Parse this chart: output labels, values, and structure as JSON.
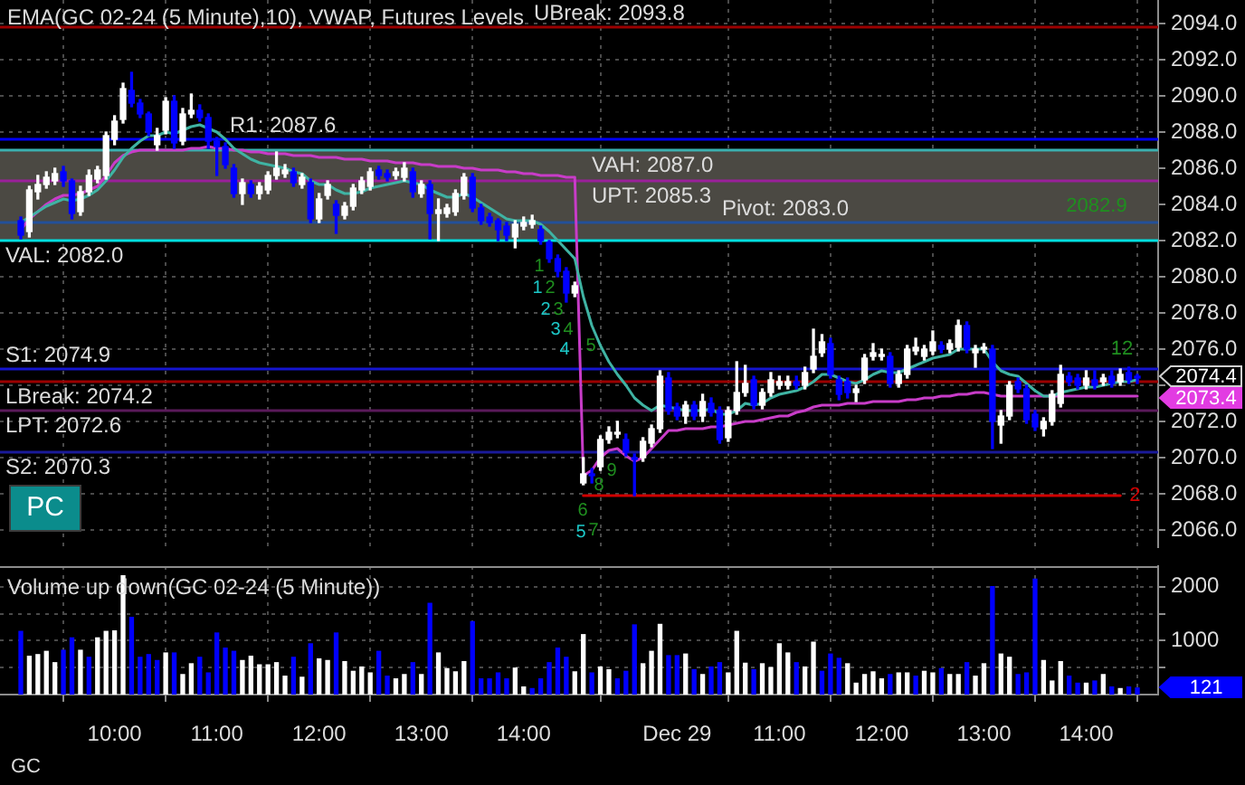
{
  "chart_data": [
    {
      "type": "candlestick",
      "title": "EMA(GC 02-24 (5 Minute),10), VWAP, Futures Levels",
      "categories": [
        null,
        null,
        null,
        null,
        null,
        null,
        null,
        null,
        null,
        null,
        null,
        null,
        null,
        null,
        null,
        null,
        null,
        null,
        null,
        null,
        null,
        null,
        null,
        null,
        null,
        null,
        null,
        null,
        null,
        null,
        null,
        null,
        null,
        null,
        null,
        null,
        null,
        null,
        null,
        null,
        null,
        null,
        null,
        null,
        null,
        null,
        null,
        null,
        null,
        null,
        null,
        null,
        null,
        null,
        null,
        null,
        null,
        null,
        null,
        null,
        null,
        null,
        null,
        null,
        null,
        null,
        null,
        null,
        null,
        null,
        null,
        null,
        null,
        null,
        null,
        null,
        null,
        null,
        null,
        null,
        null,
        null,
        null,
        null,
        null,
        null,
        null,
        null,
        null,
        null,
        null,
        null,
        null,
        null,
        null,
        null,
        null,
        null,
        null,
        null,
        null,
        null,
        null,
        null,
        null,
        null,
        null,
        null,
        null,
        null,
        null,
        null,
        null,
        null,
        null,
        null,
        null,
        null,
        null,
        null,
        null,
        null,
        null,
        null,
        null,
        null,
        null,
        null,
        null,
        null,
        null,
        null
      ],
      "ohlc": [
        [
          2083.1,
          2083.3,
          2082.1,
          2082.3
        ],
        [
          2082.5,
          2085.0,
          2082.2,
          2084.8
        ],
        [
          2084.7,
          2085.6,
          2084.3,
          2085.1
        ],
        [
          2085.1,
          2085.8,
          2084.9,
          2085.5
        ],
        [
          2085.3,
          2086.0,
          2085.1,
          2085.7
        ],
        [
          2085.8,
          2086.1,
          2085.0,
          2085.3
        ],
        [
          2085.3,
          2085.4,
          2083.2,
          2083.5
        ],
        [
          2083.6,
          2085.0,
          2083.4,
          2084.7
        ],
        [
          2084.7,
          2085.9,
          2084.5,
          2085.6
        ],
        [
          2085.4,
          2086.1,
          2085.2,
          2085.9
        ],
        [
          2085.6,
          2088.0,
          2085.4,
          2087.8
        ],
        [
          2087.6,
          2088.9,
          2087.3,
          2088.6
        ],
        [
          2088.7,
          2090.7,
          2088.5,
          2090.4
        ],
        [
          2090.3,
          2091.3,
          2089.4,
          2089.6
        ],
        [
          2089.6,
          2089.8,
          2088.8,
          2089.0
        ],
        [
          2089.0,
          2089.1,
          2087.8,
          2088.0
        ],
        [
          2087.3,
          2088.2,
          2087.0,
          2087.8
        ],
        [
          2088.1,
          2089.9,
          2087.9,
          2089.7
        ],
        [
          2089.7,
          2090.0,
          2087.1,
          2087.4
        ],
        [
          2087.5,
          2089.3,
          2087.3,
          2089.0
        ],
        [
          2089.0,
          2090.1,
          2088.8,
          2089.2
        ],
        [
          2089.2,
          2089.5,
          2088.6,
          2088.8
        ],
        [
          2088.8,
          2089.0,
          2087.1,
          2087.5
        ],
        [
          2087.5,
          2087.7,
          2085.6,
          2087.2
        ],
        [
          2087.2,
          2087.4,
          2086.0,
          2086.2
        ],
        [
          2086.0,
          2086.2,
          2084.4,
          2084.6
        ],
        [
          2084.6,
          2085.4,
          2084.0,
          2085.2
        ],
        [
          2085.1,
          2085.3,
          2084.4,
          2084.6
        ],
        [
          2084.6,
          2085.2,
          2084.3,
          2085.0
        ],
        [
          2084.8,
          2085.8,
          2084.6,
          2085.6
        ],
        [
          2085.6,
          2086.9,
          2085.4,
          2086.0
        ],
        [
          2085.7,
          2086.2,
          2085.5,
          2085.9
        ],
        [
          2085.8,
          2086.0,
          2085.0,
          2085.2
        ],
        [
          2085.1,
          2085.7,
          2084.9,
          2085.5
        ],
        [
          2085.2,
          2085.4,
          2083.0,
          2083.2
        ],
        [
          2083.2,
          2084.6,
          2083.0,
          2084.3
        ],
        [
          2084.5,
          2085.3,
          2084.3,
          2085.1
        ],
        [
          2084.0,
          2084.2,
          2082.4,
          2083.4
        ],
        [
          2083.4,
          2084.1,
          2083.2,
          2083.9
        ],
        [
          2083.9,
          2085.1,
          2083.7,
          2084.9
        ],
        [
          2084.8,
          2085.5,
          2084.6,
          2085.3
        ],
        [
          2085.0,
          2086.0,
          2084.8,
          2085.8
        ],
        [
          2085.9,
          2086.1,
          2085.4,
          2085.6
        ],
        [
          2085.7,
          2085.9,
          2085.3,
          2085.5
        ],
        [
          2085.6,
          2086.0,
          2085.4,
          2085.8
        ],
        [
          2085.5,
          2086.3,
          2085.3,
          2086.0
        ],
        [
          2085.8,
          2086.0,
          2084.4,
          2084.7
        ],
        [
          2084.6,
          2085.3,
          2084.4,
          2085.1
        ],
        [
          2085.1,
          2085.3,
          2082.1,
          2083.5
        ],
        [
          2083.5,
          2084.3,
          2082.0,
          2083.7
        ],
        [
          2083.5,
          2084.0,
          2083.3,
          2083.8
        ],
        [
          2083.6,
          2084.8,
          2083.4,
          2084.6
        ],
        [
          2084.5,
          2085.7,
          2084.3,
          2085.5
        ],
        [
          2085.5,
          2085.7,
          2083.6,
          2083.8
        ],
        [
          2083.8,
          2084.0,
          2082.9,
          2083.1
        ],
        [
          2083.3,
          2083.5,
          2082.8,
          2083.0
        ],
        [
          2083.1,
          2083.2,
          2082.0,
          2082.6
        ],
        [
          2082.8,
          2083.0,
          2082.0,
          2082.3
        ],
        [
          2082.2,
          2083.1,
          2081.6,
          2082.9
        ],
        [
          2082.8,
          2083.3,
          2082.6,
          2083.0
        ],
        [
          2082.9,
          2083.4,
          2082.7,
          2083.1
        ],
        [
          2082.6,
          2082.8,
          2081.8,
          2082.0
        ],
        [
          2081.9,
          2082.0,
          2080.8,
          2081.0
        ],
        [
          2081.0,
          2081.2,
          2080.0,
          2080.3
        ],
        [
          2080.3,
          2080.5,
          2078.6,
          2079.1
        ],
        [
          2079.1,
          2079.7,
          2078.9,
          2079.5
        ],
        [
          2068.6,
          2070.0,
          2068.5,
          2069.1
        ],
        [
          2069.1,
          2069.4,
          2068.6,
          2069.0
        ],
        [
          2069.5,
          2071.2,
          2069.3,
          2071.0
        ],
        [
          2071.0,
          2071.7,
          2070.8,
          2071.4
        ],
        [
          2071.3,
          2072.0,
          2071.1,
          2071.4
        ],
        [
          2071.0,
          2071.3,
          2070.1,
          2070.3
        ],
        [
          2070.0,
          2070.2,
          2067.9,
          2069.9
        ],
        [
          2070.0,
          2071.1,
          2069.8,
          2070.9
        ],
        [
          2070.8,
          2071.8,
          2070.6,
          2071.6
        ],
        [
          2071.6,
          2074.8,
          2071.4,
          2074.5
        ],
        [
          2074.4,
          2074.7,
          2072.4,
          2072.6
        ],
        [
          2072.8,
          2073.0,
          2072.1,
          2072.3
        ],
        [
          2072.3,
          2073.1,
          2071.9,
          2072.9
        ],
        [
          2072.9,
          2073.1,
          2072.1,
          2072.3
        ],
        [
          2072.3,
          2073.5,
          2072.0,
          2073.1
        ],
        [
          2073.0,
          2073.3,
          2072.3,
          2072.5
        ],
        [
          2072.6,
          2072.8,
          2070.8,
          2071.0
        ],
        [
          2071.1,
          2072.8,
          2070.9,
          2072.6
        ],
        [
          2072.6,
          2075.3,
          2072.4,
          2073.6
        ],
        [
          2073.6,
          2075.1,
          2073.4,
          2074.1
        ],
        [
          2074.3,
          2074.5,
          2072.7,
          2072.9
        ],
        [
          2072.9,
          2073.8,
          2072.7,
          2073.6
        ],
        [
          2073.6,
          2074.7,
          2073.4,
          2074.3
        ],
        [
          2074.0,
          2074.5,
          2073.8,
          2074.2
        ],
        [
          2074.0,
          2074.5,
          2073.8,
          2074.2
        ],
        [
          2074.2,
          2074.5,
          2073.8,
          2074.0
        ],
        [
          2074.0,
          2075.0,
          2073.8,
          2074.7
        ],
        [
          2074.9,
          2077.1,
          2074.7,
          2075.6
        ],
        [
          2075.8,
          2076.8,
          2075.6,
          2076.4
        ],
        [
          2076.3,
          2076.6,
          2074.4,
          2074.6
        ],
        [
          2074.3,
          2074.5,
          2073.2,
          2073.5
        ],
        [
          2074.2,
          2074.4,
          2073.3,
          2073.6
        ],
        [
          2073.6,
          2074.0,
          2073.1,
          2073.8
        ],
        [
          2074.3,
          2075.7,
          2074.1,
          2075.5
        ],
        [
          2075.6,
          2076.3,
          2075.4,
          2075.8
        ],
        [
          2075.6,
          2076.0,
          2075.4,
          2075.7
        ],
        [
          2075.6,
          2075.8,
          2073.9,
          2074.1
        ],
        [
          2074.1,
          2074.8,
          2073.9,
          2074.6
        ],
        [
          2074.6,
          2076.2,
          2074.4,
          2076.0
        ],
        [
          2075.9,
          2076.6,
          2075.7,
          2076.1
        ],
        [
          2075.6,
          2076.2,
          2075.4,
          2076.0
        ],
        [
          2075.9,
          2077.0,
          2075.7,
          2076.4
        ],
        [
          2076.2,
          2076.4,
          2075.8,
          2076.0
        ],
        [
          2076.0,
          2076.5,
          2075.8,
          2076.3
        ],
        [
          2076.1,
          2077.6,
          2075.9,
          2077.3
        ],
        [
          2077.3,
          2077.5,
          2075.8,
          2076.0
        ],
        [
          2075.8,
          2076.2,
          2075.0,
          2076.0
        ],
        [
          2076.0,
          2076.3,
          2075.8,
          2076.1
        ],
        [
          2076.0,
          2076.2,
          2070.5,
          2072.0
        ],
        [
          2071.8,
          2072.6,
          2070.8,
          2072.3
        ],
        [
          2072.3,
          2074.2,
          2072.1,
          2074.0
        ],
        [
          2074.2,
          2074.4,
          2073.6,
          2073.8
        ],
        [
          2073.8,
          2074.0,
          2071.9,
          2072.1
        ],
        [
          2072.4,
          2072.6,
          2071.5,
          2071.7
        ],
        [
          2071.6,
          2072.2,
          2071.2,
          2072.0
        ],
        [
          2072.0,
          2073.7,
          2071.8,
          2073.5
        ],
        [
          2073.0,
          2075.1,
          2072.8,
          2074.6
        ],
        [
          2074.5,
          2074.7,
          2074.0,
          2074.2
        ],
        [
          2074.4,
          2074.6,
          2073.8,
          2074.0
        ],
        [
          2074.0,
          2074.8,
          2073.8,
          2074.4
        ],
        [
          2074.3,
          2074.8,
          2073.8,
          2074.0
        ],
        [
          2074.2,
          2074.6,
          2074.0,
          2074.4
        ],
        [
          2074.5,
          2074.8,
          2073.9,
          2074.1
        ],
        [
          2074.2,
          2074.9,
          2074.0,
          2074.6
        ],
        [
          2074.7,
          2075.0,
          2074.1,
          2074.3
        ],
        [
          2074.5,
          2074.6,
          2074.1,
          2074.4
        ]
      ],
      "colors": [
        "#0000ff",
        "#ffffff",
        "#ffffff",
        "#ffffff",
        "#ffffff",
        "#0000ff",
        "#0000ff",
        "#ffffff",
        "#ffffff",
        "#ffffff",
        "#ffffff",
        "#ffffff",
        "#ffffff",
        "#0000ff",
        "#0000ff",
        "#0000ff",
        "#ffffff",
        "#ffffff",
        "#0000ff",
        "#ffffff",
        "#ffffff",
        "#0000ff",
        "#0000ff",
        "#0000ff",
        "#0000ff",
        "#0000ff",
        "#ffffff",
        "#0000ff",
        "#ffffff",
        "#ffffff",
        "#ffffff",
        "#ffffff",
        "#0000ff",
        "#ffffff",
        "#0000ff",
        "#ffffff",
        "#ffffff",
        "#0000ff",
        "#ffffff",
        "#ffffff",
        "#ffffff",
        "#ffffff",
        "#0000ff",
        "#0000ff",
        "#ffffff",
        "#ffffff",
        "#0000ff",
        "#ffffff",
        "#0000ff",
        "#ffffff",
        "#ffffff",
        "#ffffff",
        "#ffffff",
        "#0000ff",
        "#0000ff",
        "#0000ff",
        "#0000ff",
        "#0000ff",
        "#ffffff",
        "#ffffff",
        "#ffffff",
        "#0000ff",
        "#0000ff",
        "#0000ff",
        "#0000ff",
        "#ffffff",
        "#ffffff",
        "#0000ff",
        "#ffffff",
        "#ffffff",
        "#ffffff",
        "#0000ff",
        "#0000ff",
        "#ffffff",
        "#ffffff",
        "#ffffff",
        "#0000ff",
        "#0000ff",
        "#ffffff",
        "#0000ff",
        "#ffffff",
        "#0000ff",
        "#0000ff",
        "#ffffff",
        "#ffffff",
        "#ffffff",
        "#0000ff",
        "#ffffff",
        "#ffffff",
        "#ffffff",
        "#ffffff",
        "#0000ff",
        "#ffffff",
        "#ffffff",
        "#ffffff",
        "#0000ff",
        "#0000ff",
        "#0000ff",
        "#ffffff",
        "#ffffff",
        "#ffffff",
        "#ffffff",
        "#0000ff",
        "#ffffff",
        "#ffffff",
        "#ffffff",
        "#ffffff",
        "#ffffff",
        "#0000ff",
        "#ffffff",
        "#ffffff",
        "#0000ff",
        "#ffffff",
        "#ffffff",
        "#0000ff",
        "#ffffff",
        "#ffffff",
        "#0000ff",
        "#0000ff",
        "#0000ff",
        "#ffffff",
        "#ffffff",
        "#ffffff",
        "#0000ff",
        "#0000ff",
        "#ffffff",
        "#0000ff",
        "#ffffff",
        "#0000ff",
        "#ffffff",
        "#0000ff",
        "#0000ff"
      ],
      "series": [
        {
          "type": "line",
          "color": "#3fb3a3",
          "values": [
            2083.0,
            2083.3,
            2083.6,
            2083.9,
            2084.1,
            2084.3,
            2084.2,
            2084.3,
            2084.5,
            2084.8,
            2085.3,
            2085.9,
            2086.6,
            2087.1,
            2087.5,
            2087.8,
            2087.8,
            2088.0,
            2087.9,
            2088.1,
            2088.3,
            2088.4,
            2088.2,
            2088.0,
            2087.6,
            2087.1,
            2086.8,
            2086.5,
            2086.3,
            2086.2,
            2086.1,
            2086.0,
            2085.8,
            2085.7,
            2085.3,
            2085.1,
            2085.1,
            2084.8,
            2084.6,
            2084.6,
            2084.7,
            2084.9,
            2085.0,
            2085.1,
            2085.2,
            2085.3,
            2085.2,
            2085.1,
            2084.8,
            2084.6,
            2084.4,
            2084.4,
            2084.6,
            2084.4,
            2084.1,
            2083.8,
            2083.5,
            2083.2,
            2083.1,
            2083.1,
            2083.1,
            2082.9,
            2082.5,
            2082.0,
            2081.5,
            2081.0,
            2078.9,
            2077.3,
            2076.2,
            2075.3,
            2074.6,
            2074.0,
            2073.3,
            2072.9,
            2072.6,
            2072.9,
            2072.8,
            2072.7,
            2072.6,
            2072.6,
            2072.6,
            2072.7,
            2072.4,
            2072.4,
            2072.6,
            2073.0,
            2072.9,
            2073.0,
            2073.3,
            2073.5,
            2073.6,
            2073.7,
            2073.9,
            2074.2,
            2074.6,
            2074.6,
            2074.4,
            2074.2,
            2074.1,
            2074.3,
            2074.6,
            2074.8,
            2074.7,
            2074.7,
            2074.9,
            2075.1,
            2075.3,
            2075.5,
            2075.6,
            2075.7,
            2076.0,
            2076.0,
            2076.0,
            2076.0,
            2075.3,
            2074.8,
            2074.6,
            2074.5,
            2074.1,
            2073.7,
            2073.4,
            2073.4,
            2073.6,
            2073.7,
            2073.8,
            2073.9,
            2073.9,
            2074.0,
            2074.1,
            2074.2,
            2074.2,
            2074.3
          ]
        },
        {
          "type": "line",
          "color": "#c83cc8",
          "values": [
            2082.6,
            2083.2,
            2083.6,
            2084.0,
            2084.3,
            2084.5,
            2084.5,
            2084.6,
            2084.8,
            2085.0,
            2085.6,
            2086.3,
            2086.7,
            2086.9,
            2087.0,
            2087.0,
            2087.0,
            2087.0,
            2087.0,
            2087.0,
            2087.1,
            2087.1,
            2087.2,
            2087.1,
            2087.1,
            2087.0,
            2087.0,
            2086.9,
            2086.9,
            2086.8,
            2086.8,
            2086.8,
            2086.7,
            2086.7,
            2086.7,
            2086.6,
            2086.6,
            2086.6,
            2086.5,
            2086.5,
            2086.5,
            2086.4,
            2086.4,
            2086.4,
            2086.3,
            2086.3,
            2086.3,
            2086.2,
            2086.2,
            2086.1,
            2086.1,
            2086.1,
            2086.0,
            2086.0,
            2085.9,
            2085.9,
            2085.9,
            2085.8,
            2085.8,
            2085.7,
            2085.7,
            2085.6,
            2085.6,
            2085.6,
            2085.5,
            2085.5,
            2069.0,
            2069.3,
            2070.0,
            2070.4,
            2070.5,
            2070.1,
            2069.8,
            2070.0,
            2070.5,
            2071.0,
            2071.5,
            2071.5,
            2071.6,
            2071.6,
            2071.6,
            2071.7,
            2071.7,
            2071.8,
            2071.9,
            2072.0,
            2072.0,
            2072.1,
            2072.2,
            2072.3,
            2072.3,
            2072.5,
            2072.6,
            2072.8,
            2072.9,
            2072.9,
            2072.9,
            2073.0,
            2073.0,
            2073.0,
            2073.1,
            2073.1,
            2073.1,
            2073.1,
            2073.2,
            2073.2,
            2073.3,
            2073.3,
            2073.4,
            2073.4,
            2073.5,
            2073.5,
            2073.6,
            2073.6,
            2073.5,
            2073.4,
            2073.4,
            2073.4,
            2073.4,
            2073.4,
            2073.4,
            2073.4,
            2073.4,
            2073.4,
            2073.4,
            2073.4,
            2073.4,
            2073.4,
            2073.4,
            2073.4,
            2073.4,
            2073.4
          ]
        },
        {
          "type": "line",
          "name": "2",
          "color": "#d00000",
          "values": [
            null,
            null,
            null,
            null,
            null,
            null,
            null,
            null,
            null,
            null,
            null,
            null,
            null,
            null,
            null,
            null,
            null,
            null,
            null,
            null,
            null,
            null,
            null,
            null,
            null,
            null,
            null,
            null,
            null,
            null,
            null,
            null,
            null,
            null,
            null,
            null,
            null,
            null,
            null,
            null,
            null,
            null,
            null,
            null,
            null,
            null,
            null,
            null,
            null,
            null,
            null,
            null,
            null,
            null,
            null,
            null,
            null,
            null,
            null,
            null,
            null,
            null,
            null,
            null,
            null,
            null,
            2067.9,
            2067.9,
            2067.9,
            2067.9,
            2067.9,
            2067.9,
            2067.9,
            2067.9,
            2067.9,
            2067.9,
            2067.9,
            2067.9,
            2067.9,
            2067.9,
            2067.9,
            2067.9,
            2067.9,
            2067.9,
            2067.9,
            2067.9,
            2067.9,
            2067.9,
            2067.9,
            2067.9,
            2067.9,
            2067.9,
            2067.9,
            2067.9,
            2067.9,
            2067.9,
            2067.9,
            2067.9,
            2067.9,
            2067.9,
            2067.9,
            2067.9,
            2067.9,
            2067.9,
            2067.9,
            2067.9,
            2067.9,
            2067.9,
            2067.9,
            2067.9,
            2067.9,
            2067.9,
            2067.9,
            2067.9,
            2067.9,
            2067.9,
            2067.9,
            2067.9,
            2067.9,
            2067.9,
            2067.9,
            2067.9,
            2067.9,
            2067.9,
            2067.9,
            2067.9,
            2067.9,
            2067.9,
            2067.9,
            2067.9,
            null,
            null
          ]
        }
      ],
      "ylim": [
        2065.0,
        2095.3
      ],
      "yticks": [
        {
          "value": 2066,
          "label": "2066.0"
        },
        {
          "value": 2068,
          "label": "2068.0"
        },
        {
          "value": 2070,
          "label": "2070.0"
        },
        {
          "value": 2072,
          "label": "2072.0"
        },
        {
          "value": 2074,
          "label": null
        },
        {
          "value": 2076,
          "label": "2076.0"
        },
        {
          "value": 2078,
          "label": "2078.0"
        },
        {
          "value": 2080,
          "label": "2080.0"
        },
        {
          "value": 2082,
          "label": "2082.0"
        },
        {
          "value": 2084,
          "label": "2084.0"
        },
        {
          "value": 2086,
          "label": "2086.0"
        },
        {
          "value": 2088,
          "label": "2088.0"
        },
        {
          "value": 2090,
          "label": "2090.0"
        },
        {
          "value": 2092,
          "label": "2092.0"
        },
        {
          "value": 2094,
          "label": "2094.0"
        }
      ],
      "bands": [
        {
          "axis": "y",
          "from": 2082.0,
          "to": 2087.0,
          "color": "#4b4943"
        }
      ],
      "ref_lines": [
        {
          "axis": "y",
          "value": 2093.8,
          "label": "UBreak: 2093.8",
          "color": "#9b0000"
        },
        {
          "axis": "y",
          "value": 2087.6,
          "label": "R1: 2087.6",
          "color": "#0000ff"
        },
        {
          "axis": "y",
          "value": 2087.0,
          "label": "VAH: 2087.0",
          "color": "#3ab0b0"
        },
        {
          "axis": "y",
          "value": 2085.3,
          "label": "UPT: 2085.3",
          "color": "#9a209a"
        },
        {
          "axis": "y",
          "value": 2083.0,
          "label": "Pivot: 2083.0",
          "color": "#23509a"
        },
        {
          "axis": "y",
          "value": 2082.0,
          "label": "VAL: 2082.0",
          "color": "#00e0e0"
        },
        {
          "axis": "y",
          "value": 2074.9,
          "label": "S1: 2074.9",
          "color": "#1515d0"
        },
        {
          "axis": "y",
          "value": 2074.2,
          "label": "LBreak: 2074.2",
          "color": "#9b0000"
        },
        {
          "axis": "y",
          "value": 2072.6,
          "label": "LPT: 2072.6",
          "color": "#5a1a5a"
        },
        {
          "axis": "y",
          "value": 2070.3,
          "label": "S2: 2070.3",
          "color": "#1a1a9a"
        }
      ],
      "annotations": [
        "PC",
        "2074.4",
        "2073.4",
        "2082.9",
        "12",
        "1",
        "2",
        "3",
        "4",
        "5",
        "1",
        "2",
        "3",
        "4",
        "5",
        "6",
        "7",
        "8",
        "9"
      ],
      "grid": true,
      "tick_labels": "y"
    },
    {
      "type": "bar",
      "title": "Volume up down(GC 02-24 (5 Minute))",
      "categories": [
        null,
        null,
        null,
        null,
        null,
        null,
        null,
        null,
        null,
        null,
        null,
        "10:00",
        null,
        null,
        null,
        null,
        null,
        null,
        null,
        null,
        null,
        null,
        null,
        "11:00",
        null,
        null,
        null,
        null,
        null,
        null,
        null,
        null,
        null,
        null,
        null,
        "12:00",
        null,
        null,
        null,
        null,
        null,
        null,
        null,
        null,
        null,
        null,
        null,
        "13:00",
        null,
        null,
        null,
        null,
        null,
        null,
        null,
        null,
        null,
        null,
        null,
        "14:00",
        null,
        null,
        null,
        null,
        null,
        null,
        null,
        null,
        null,
        null,
        null,
        null,
        null,
        null,
        null,
        null,
        null,
        "Dec 29",
        null,
        null,
        null,
        null,
        null,
        null,
        null,
        null,
        null,
        null,
        null,
        "11:00",
        null,
        null,
        null,
        null,
        null,
        null,
        null,
        null,
        null,
        null,
        null,
        "12:00",
        null,
        null,
        null,
        null,
        null,
        null,
        null,
        null,
        null,
        null,
        null,
        "13:00",
        null,
        null,
        null,
        null,
        null,
        null,
        null,
        null,
        null,
        null,
        null,
        "14:00",
        null,
        null,
        null,
        null,
        null,
        null
      ],
      "values": [
        1170,
        710,
        740,
        800,
        590,
        820,
        1050,
        820,
        690,
        1050,
        1170,
        1180,
        2200,
        1430,
        690,
        740,
        630,
        770,
        770,
        370,
        570,
        690,
        400,
        1140,
        860,
        800,
        630,
        710,
        550,
        550,
        590,
        340,
        690,
        320,
        940,
        660,
        630,
        1140,
        610,
        430,
        510,
        400,
        800,
        340,
        290,
        370,
        590,
        370,
        1690,
        770,
        480,
        420,
        610,
        1350,
        290,
        290,
        400,
        290,
        490,
        140,
        110,
        290,
        590,
        860,
        690,
        420,
        1110,
        400,
        510,
        460,
        290,
        430,
        1290,
        570,
        800,
        1300,
        720,
        720,
        750,
        460,
        370,
        510,
        590,
        400,
        1170,
        580,
        460,
        570,
        500,
        940,
        770,
        590,
        510,
        970,
        430,
        750,
        670,
        570,
        210,
        370,
        420,
        290,
        370,
        400,
        400,
        340,
        430,
        400,
        480,
        370,
        370,
        590,
        340,
        570,
        2000,
        750,
        690,
        370,
        400,
        2140,
        630,
        250,
        610,
        340,
        210,
        210,
        250,
        370,
        140,
        110,
        140,
        121
      ],
      "colors": [
        "#0000ff",
        "#ffffff",
        "#ffffff",
        "#ffffff",
        "#ffffff",
        "#0000ff",
        "#0000ff",
        "#ffffff",
        "#0000ff",
        "#ffffff",
        "#ffffff",
        "#ffffff",
        "#ffffff",
        "#0000ff",
        "#0000ff",
        "#0000ff",
        "#0000ff",
        "#ffffff",
        "#0000ff",
        "#ffffff",
        "#ffffff",
        "#0000ff",
        "#0000ff",
        "#0000ff",
        "#0000ff",
        "#0000ff",
        "#ffffff",
        "#ffffff",
        "#ffffff",
        "#ffffff",
        "#ffffff",
        "#ffffff",
        "#0000ff",
        "#ffffff",
        "#0000ff",
        "#ffffff",
        "#ffffff",
        "#0000ff",
        "#ffffff",
        "#ffffff",
        "#ffffff",
        "#ffffff",
        "#0000ff",
        "#0000ff",
        "#ffffff",
        "#ffffff",
        "#0000ff",
        "#ffffff",
        "#0000ff",
        "#ffffff",
        "#ffffff",
        "#ffffff",
        "#ffffff",
        "#0000ff",
        "#0000ff",
        "#0000ff",
        "#0000ff",
        "#0000ff",
        "#ffffff",
        "#ffffff",
        "#0000ff",
        "#0000ff",
        "#0000ff",
        "#0000ff",
        "#0000ff",
        "#ffffff",
        "#ffffff",
        "#0000ff",
        "#ffffff",
        "#ffffff",
        "#0000ff",
        "#0000ff",
        "#0000ff",
        "#ffffff",
        "#ffffff",
        "#ffffff",
        "#0000ff",
        "#0000ff",
        "#ffffff",
        "#0000ff",
        "#ffffff",
        "#0000ff",
        "#0000ff",
        "#ffffff",
        "#ffffff",
        "#ffffff",
        "#0000ff",
        "#ffffff",
        "#ffffff",
        "#ffffff",
        "#ffffff",
        "#0000ff",
        "#ffffff",
        "#ffffff",
        "#0000ff",
        "#0000ff",
        "#0000ff",
        "#ffffff",
        "#ffffff",
        "#ffffff",
        "#ffffff",
        "#ffffff",
        "#0000ff",
        "#ffffff",
        "#ffffff",
        "#0000ff",
        "#ffffff",
        "#ffffff",
        "#0000ff",
        "#ffffff",
        "#ffffff",
        "#0000ff",
        "#ffffff",
        "#ffffff",
        "#0000ff",
        "#ffffff",
        "#ffffff",
        "#0000ff",
        "#0000ff",
        "#0000ff",
        "#ffffff",
        "#ffffff",
        "#ffffff",
        "#0000ff",
        "#0000ff",
        "#ffffff",
        "#0000ff",
        "#ffffff",
        "#0000ff",
        "#ffffff",
        "#0000ff",
        "#0000ff"
      ],
      "ylim": [
        0,
        2380
      ],
      "yticks": [
        {
          "value": 500,
          "label": null
        },
        1000,
        {
          "value": 1500,
          "label": null
        },
        2000
      ],
      "annotations": [
        "121",
        "GC"
      ],
      "grid": true
    }
  ]
}
